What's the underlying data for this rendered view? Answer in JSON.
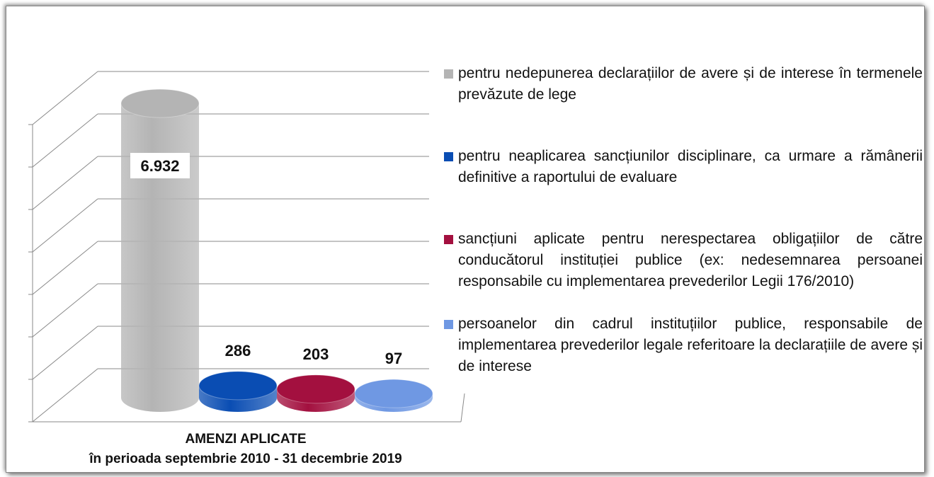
{
  "chart_data": {
    "type": "bar3d",
    "series": [
      {
        "name": "pentru nedepunerea declarațiilor de avere și de interese în termenele prevăzute de lege",
        "color": "#b4b4b4",
        "values": [
          6932
        ],
        "value_labels": [
          "6.932"
        ]
      },
      {
        "name": "pentru neaplicarea sancțiunilor disciplinare, ca urmare a rămânerii definitive a raportului de evaluare",
        "color": "#0a4db3",
        "values": [
          286
        ],
        "value_labels": [
          "286"
        ]
      },
      {
        "name": "sancțiuni aplicate pentru nerespectarea obligațiilor de către conducătorul instituției publice (ex: nedesemnarea persoanei responsabile cu implementarea prevederilor Legii 176/2010)",
        "color": "#a3103f",
        "values": [
          203
        ],
        "value_labels": [
          "203"
        ]
      },
      {
        "name": "persoanelor din cadrul instituțiilor publice, responsabile de implementarea prevederilor legale referitoare la declarațiile de avere și de interese",
        "color": "#6f98e3",
        "values": [
          97
        ],
        "value_labels": [
          "97"
        ]
      }
    ],
    "xlabel": [
      "AMENZI APLICATE",
      "în perioada septembrie 2010 - 31 decembrie 2019"
    ],
    "ylim": [
      0,
      7000
    ],
    "yticks": [
      0,
      1000,
      2000,
      3000,
      4000,
      5000,
      6000,
      7000
    ],
    "grid": true,
    "legend": "right"
  }
}
